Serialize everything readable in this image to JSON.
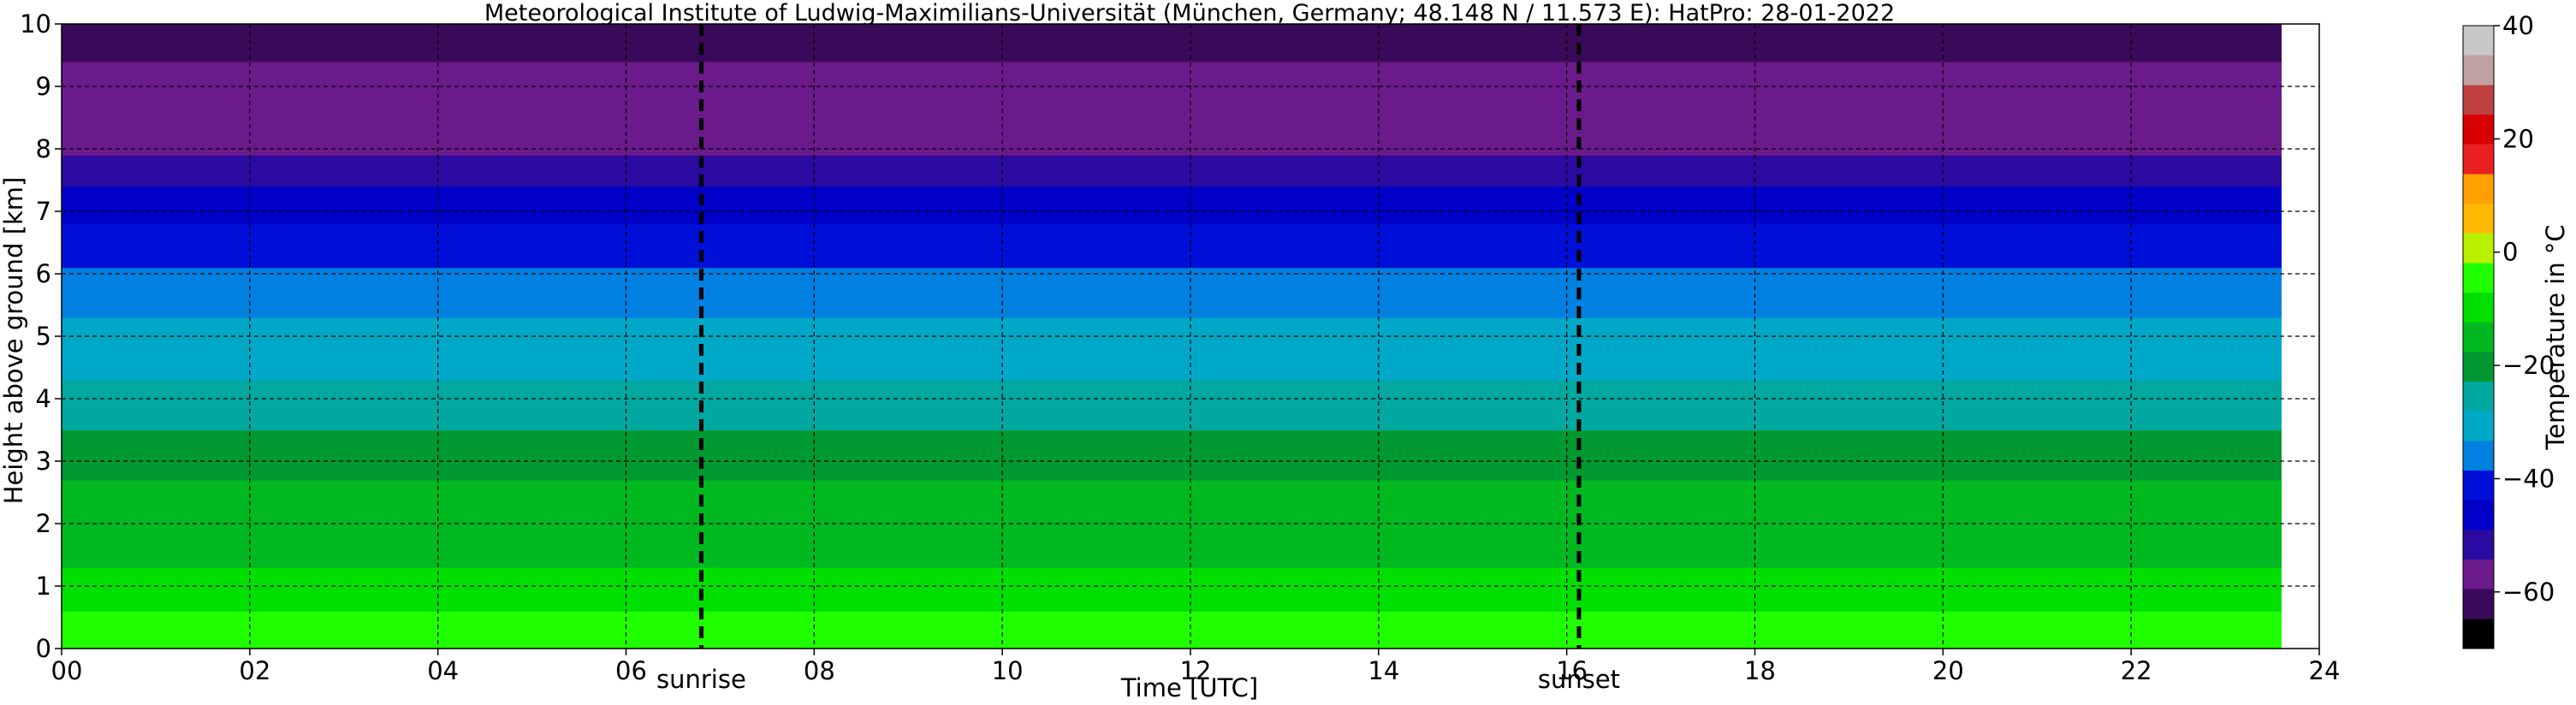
{
  "chart_data": {
    "type": "heatmap",
    "title": "Meteorological Institute of Ludwig-Maximilians-Universität (München, Germany; 48.148 N / 11.573 E):    HatPro: 28-01-2022",
    "xlabel": "Time [UTC]",
    "ylabel": "Height above ground [km]",
    "xlim": [
      0,
      24
    ],
    "ylim": [
      0,
      10
    ],
    "x_ticks": [
      "00",
      "02",
      "04",
      "06",
      "08",
      "10",
      "12",
      "14",
      "16",
      "18",
      "20",
      "22",
      "24"
    ],
    "y_ticks": [
      "0",
      "1",
      "2",
      "3",
      "4",
      "5",
      "6",
      "7",
      "8",
      "9",
      "10"
    ],
    "grid": true,
    "events": [
      {
        "label": "sunrise",
        "time": 6.8
      },
      {
        "label": "sunset",
        "time": 16.13
      }
    ],
    "data_end_time": 23.6,
    "colorbar": {
      "label": "Temperature in $^\\circ$C",
      "range": [
        -70,
        40
      ],
      "ticks": [
        "40",
        "20",
        "0",
        "−20",
        "−40",
        "−60"
      ],
      "tick_values": [
        40,
        20,
        0,
        -20,
        -40,
        -60
      ]
    },
    "temperature_profile_by_height": {
      "height_km": [
        0.0,
        0.5,
        1.0,
        1.5,
        2.0,
        2.5,
        3.0,
        3.5,
        4.0,
        4.5,
        5.0,
        5.5,
        6.0,
        6.5,
        7.0,
        7.5,
        8.0,
        8.5,
        9.0,
        9.5,
        10.0
      ],
      "temperature_c": [
        -2,
        -6,
        -11,
        -13,
        -15,
        -17,
        -19,
        -23,
        -26,
        -30,
        -32,
        -34,
        -38,
        -42,
        -45,
        -50,
        -55,
        -58,
        -58,
        -60,
        -62
      ]
    }
  },
  "colors": {
    "colormap": [
      "#000000",
      "#3a0a5a",
      "#6a1a8a",
      "#2a0aa0",
      "#0000c8",
      "#0010d8",
      "#0080e0",
      "#00a8c8",
      "#00a8a0",
      "#009830",
      "#00b820",
      "#00e000",
      "#20ff00",
      "#b8f000",
      "#ffb800",
      "#ffa000",
      "#e82020",
      "#d80000",
      "#c04040",
      "#c0a0a0",
      "#c8c8c8"
    ]
  }
}
